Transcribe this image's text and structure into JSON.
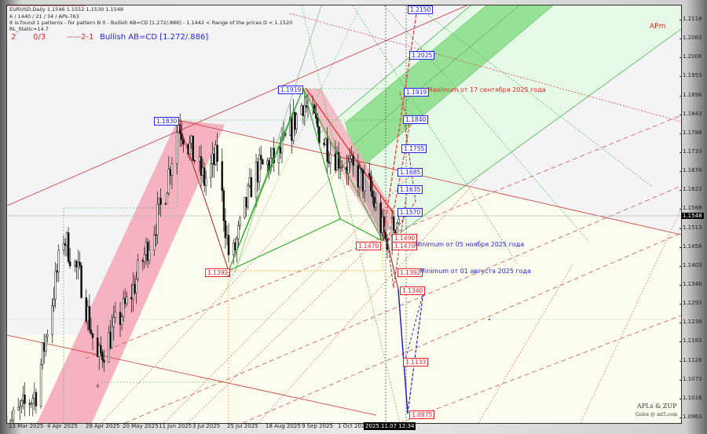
{
  "header": {
    "symbol_line": "EURUSD,Daily  1.1546 1.1552 1.1530 1.1548",
    "params_line": "6 / 1440 / 21 / 34 / APs-763",
    "pattern_line": "It is found 1 patterns  -  for pattern N 0 - Bullish AB=CD [1.272/.886] - 1.1442 < Range of the prices D < 1.1520",
    "static_line": "RL_Static=14.7",
    "count": "2",
    "ratio": "0/3",
    "legs": "-----2-1",
    "pattern_name": "Bullish AB=CD [1.272/.886]"
  },
  "colors": {
    "bullish": "#2222ee",
    "bearish": "#ee2222",
    "channel_green": "#66cc66",
    "channel_pink": "#f2a0b0",
    "background": "#f4f4f6",
    "lower_zone": "#fdfdef"
  },
  "price_axis": {
    "ticks": [
      "1.2118",
      "1.2063",
      "1.2008",
      "1.1953",
      "1.1898",
      "1.1843",
      "1.1788",
      "1.1733",
      "1.1678",
      "1.1623",
      "1.1568",
      "1.1513",
      "1.1458",
      "1.1403",
      "1.1348",
      "1.1293",
      "1.1238",
      "1.1183",
      "1.1128",
      "1.1073",
      "1.1018",
      "1.0963"
    ],
    "current": "1.1548"
  },
  "time_axis": {
    "ticks": [
      "13 Mar 2025",
      "4 Apr 2025",
      "28 Apr 2025",
      "20 May 2025",
      "11 Jun 2025",
      "3 Jul 2025",
      "25 Jul 2025",
      "18 Aug 2025",
      "9 Sep 2025",
      "1 Oct 2025"
    ],
    "cursor": "2025.11.07 12:34"
  },
  "levels": {
    "blue": [
      "1.2150",
      "1.2025",
      "1.1919",
      "1.1840",
      "1.1755",
      "1.1685",
      "1.1635",
      "1.1570",
      "1.1830",
      "1.1919"
    ],
    "red": [
      "1.1490",
      "1.1470",
      "1.1470",
      "1.1392",
      "1.1340",
      "1.1133",
      "1.0975",
      "1.1392"
    ]
  },
  "annotations": {
    "maximum": "Maximum от 17 сентября 2025 года",
    "minimum_nov": "Minimum от 05 ноября 2025 года",
    "minimum_aug": "Minimum от 01 августа 2025 года",
    "apm": "APm",
    "point2": "2",
    "point4": "4",
    "brand": "APLs & ZUP",
    "brand_sub": "Gelox @ mt5.com"
  },
  "chart_data": {
    "type": "candlestick",
    "symbol": "EURUSD",
    "timeframe": "Daily",
    "ylim": [
      1.0963,
      1.2118
    ],
    "last": {
      "open": 1.1546,
      "high": 1.1552,
      "low": 1.153,
      "close": 1.1548
    },
    "path": [
      [
        "2025-03-10",
        1.0933
      ],
      [
        "2025-03-28",
        1.1036
      ],
      [
        "2025-04-14",
        1.149
      ],
      [
        "2025-04-25",
        1.1355
      ],
      [
        "2025-05-05",
        1.1127
      ],
      [
        "2025-05-25",
        1.131
      ],
      [
        "2025-06-15",
        1.16
      ],
      [
        "2025-06-24",
        1.1822
      ],
      [
        "2025-07-10",
        1.165
      ],
      [
        "2025-07-18",
        1.172
      ],
      [
        "2025-07-26",
        1.14
      ],
      [
        "2025-08-10",
        1.1674
      ],
      [
        "2025-08-25",
        1.172
      ],
      [
        "2025-09-09",
        1.188
      ],
      [
        "2025-09-25",
        1.1742
      ],
      [
        "2025-10-08",
        1.1685
      ],
      [
        "2025-10-20",
        1.163
      ],
      [
        "2025-10-30",
        1.1475
      ],
      [
        "2025-11-07",
        1.1548
      ]
    ]
  }
}
